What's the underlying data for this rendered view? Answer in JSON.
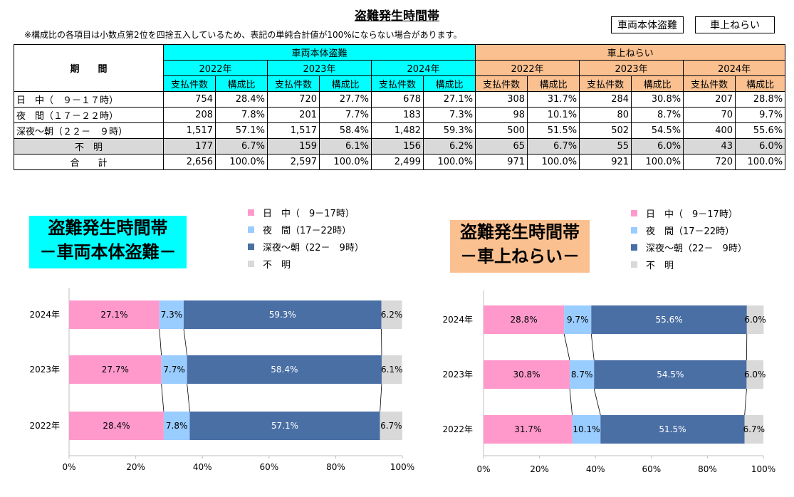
{
  "title": "盗難発生時間帯",
  "note": "※構成比の各項目は小数点第2位を四捨五入しているため、表記の単純合計値が100%にならない場合があります。",
  "buttons": [
    "車両本体盗難",
    "車上ねらい"
  ],
  "table": {
    "period_header": "期　　間",
    "groups": [
      "車両本体盗難",
      "車上ねらい"
    ],
    "years": [
      "2022年",
      "2023年",
      "2024年"
    ],
    "subheaders": [
      "支払件数",
      "構成比"
    ],
    "rows": [
      {
        "label": "日　中（　９－１７時）",
        "cells": [
          "754",
          "28.4%",
          "720",
          "27.7%",
          "678",
          "27.1%",
          "308",
          "31.7%",
          "284",
          "30.8%",
          "207",
          "28.8%"
        ]
      },
      {
        "label": "夜　間（１７－２２時）",
        "cells": [
          "208",
          "7.8%",
          "201",
          "7.7%",
          "183",
          "7.3%",
          "98",
          "10.1%",
          "80",
          "8.7%",
          "70",
          "9.7%"
        ]
      },
      {
        "label": "深夜～朝（２２－　９時）",
        "cells": [
          "1,517",
          "57.1%",
          "1,517",
          "58.4%",
          "1,482",
          "59.3%",
          "500",
          "51.5%",
          "502",
          "54.5%",
          "400",
          "55.6%"
        ]
      },
      {
        "label": "不　明",
        "cells": [
          "177",
          "6.7%",
          "159",
          "6.1%",
          "156",
          "6.2%",
          "65",
          "6.7%",
          "55",
          "6.0%",
          "43",
          "6.0%"
        ]
      },
      {
        "label": "合　　計",
        "cells": [
          "2,656",
          "100.0%",
          "2,597",
          "100.0%",
          "2,499",
          "100.0%",
          "971",
          "100.0%",
          "921",
          "100.0%",
          "720",
          "100.0%"
        ]
      }
    ]
  },
  "colors": {
    "daytime": "#ff99cc",
    "evening": "#99ccff",
    "night": "#4a6fa5",
    "unknown": "#d9d9d9",
    "cyan": "#00ffff",
    "orange": "#fac090"
  },
  "chart_data": [
    {
      "type": "bar",
      "stacked": "percent",
      "orientation": "horizontal",
      "title": "盗難発生時間帯\n－車両本体盗難－",
      "categories": [
        "2024年",
        "2023年",
        "2022年"
      ],
      "series": [
        {
          "name": "日　中（　9－17時）",
          "values": [
            27.1,
            27.7,
            28.4
          ]
        },
        {
          "name": "夜　間（17－22時）",
          "values": [
            7.3,
            7.7,
            7.8
          ]
        },
        {
          "name": "深夜～朝（22－　9時）",
          "values": [
            59.3,
            58.4,
            57.1
          ]
        },
        {
          "name": "不　明",
          "values": [
            6.2,
            6.1,
            6.7
          ]
        }
      ],
      "xlim": [
        0,
        100
      ],
      "xticks": [
        "0%",
        "20%",
        "40%",
        "60%",
        "80%",
        "100%"
      ],
      "legend": "top-right"
    },
    {
      "type": "bar",
      "stacked": "percent",
      "orientation": "horizontal",
      "title": "盗難発生時間帯\n－車上ねらい－",
      "categories": [
        "2024年",
        "2023年",
        "2022年"
      ],
      "series": [
        {
          "name": "日　中（　9－17時）",
          "values": [
            28.8,
            30.8,
            31.7
          ]
        },
        {
          "name": "夜　間（17－22時）",
          "values": [
            9.7,
            8.7,
            10.1
          ]
        },
        {
          "name": "深夜～朝（22－　9時）",
          "values": [
            55.6,
            54.5,
            51.5
          ]
        },
        {
          "name": "不　明",
          "values": [
            6.0,
            6.0,
            6.7
          ]
        }
      ],
      "xlim": [
        0,
        100
      ],
      "xticks": [
        "0%",
        "20%",
        "40%",
        "60%",
        "80%",
        "100%"
      ],
      "legend": "top-right"
    }
  ],
  "chart_titles": [
    {
      "line1": "盗難発生時間帯",
      "line2": "－車両本体盗難－"
    },
    {
      "line1": "盗難発生時間帯",
      "line2": "－車上ねらい－"
    }
  ]
}
